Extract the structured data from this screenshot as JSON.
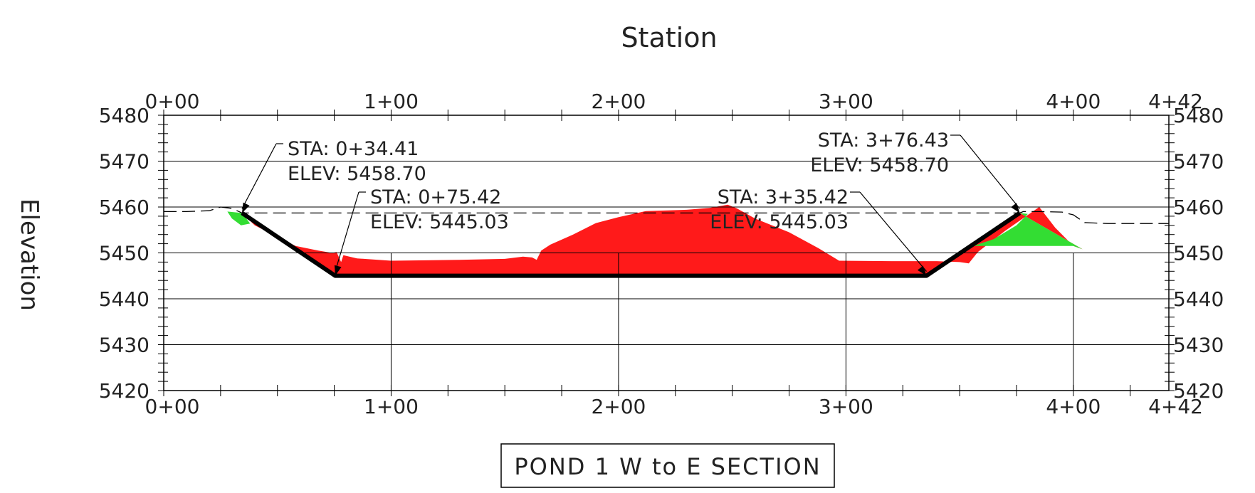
{
  "chart_data": {
    "type": "area",
    "title": "POND 1 W to E SECTION",
    "xlabel": "Station",
    "ylabel": "Elevation",
    "xlim": [
      0,
      442
    ],
    "ylim": [
      5420,
      5480
    ],
    "grid": true,
    "x_major_ticks": [
      {
        "value": 0,
        "label": "0+00"
      },
      {
        "value": 100,
        "label": "1+00"
      },
      {
        "value": 200,
        "label": "2+00"
      },
      {
        "value": 300,
        "label": "3+00"
      },
      {
        "value": 400,
        "label": "4+00"
      },
      {
        "value": 442,
        "label": "4+42"
      }
    ],
    "y_major_ticks": [
      {
        "value": 5420,
        "label": "5420"
      },
      {
        "value": 5430,
        "label": "5430"
      },
      {
        "value": 5440,
        "label": "5440"
      },
      {
        "value": 5450,
        "label": "5450"
      },
      {
        "value": 5460,
        "label": "5460"
      },
      {
        "value": 5470,
        "label": "5470"
      },
      {
        "value": 5480,
        "label": "5480"
      }
    ],
    "colors": {
      "cut": "#ff1a1a",
      "fill": "#33dd33",
      "design": "#000000",
      "existing": "#000000",
      "grid": "#000000"
    },
    "series": [
      {
        "style": "design",
        "points": [
          [
            34.41,
            5458.7
          ],
          [
            75.42,
            5445.03
          ],
          [
            335.42,
            5445.03
          ],
          [
            376.43,
            5458.7
          ]
        ]
      },
      {
        "style": "existing",
        "points": [
          [
            0,
            5459.0
          ],
          [
            10,
            5459.0
          ],
          [
            20,
            5459.2
          ],
          [
            25,
            5460.0
          ],
          [
            30,
            5459.7
          ],
          [
            34.41,
            5458.7
          ],
          [
            376.43,
            5458.7
          ],
          [
            378,
            5459.0
          ],
          [
            385,
            5459.0
          ],
          [
            395,
            5458.9
          ],
          [
            400,
            5458.3
          ],
          [
            405,
            5456.6
          ],
          [
            415,
            5456.4
          ],
          [
            442,
            5456.4
          ]
        ]
      },
      {
        "style": "cut",
        "points": [
          [
            34.41,
            5458.7
          ],
          [
            40,
            5456.0
          ],
          [
            50,
            5453.5
          ],
          [
            58,
            5451.5
          ],
          [
            68,
            5450.5
          ],
          [
            74,
            5450.0
          ],
          [
            76,
            5450.2
          ],
          [
            78,
            5448.0
          ],
          [
            79,
            5449.5
          ],
          [
            85,
            5448.8
          ],
          [
            100,
            5448.3
          ],
          [
            130,
            5448.5
          ],
          [
            150,
            5448.7
          ],
          [
            158,
            5449.2
          ],
          [
            162,
            5449.0
          ],
          [
            164,
            5448.5
          ],
          [
            166,
            5450.5
          ],
          [
            170,
            5451.8
          ],
          [
            180,
            5454.0
          ],
          [
            190,
            5456.5
          ],
          [
            200,
            5457.8
          ],
          [
            212,
            5459.1
          ],
          [
            230,
            5459.4
          ],
          [
            240,
            5459.8
          ],
          [
            248,
            5460.5
          ],
          [
            252,
            5459.7
          ],
          [
            260,
            5457.5
          ],
          [
            275,
            5454.5
          ],
          [
            288,
            5451.0
          ],
          [
            297,
            5448.3
          ],
          [
            320,
            5448.2
          ],
          [
            340,
            5448.2
          ],
          [
            350,
            5448.0
          ],
          [
            354,
            5447.7
          ],
          [
            358,
            5450.2
          ],
          [
            370,
            5454.8
          ],
          [
            385,
            5460.0
          ],
          [
            392,
            5455.5
          ],
          [
            400,
            5451.5
          ],
          [
            404,
            5450.8
          ],
          [
            376.43,
            5458.7
          ],
          [
            335.42,
            5445.03
          ],
          [
            75.42,
            5445.03
          ]
        ]
      },
      {
        "style": "fill",
        "polygons": [
          [
            [
              28,
              5459.0
            ],
            [
              34.41,
              5458.7
            ],
            [
              38,
              5456.4
            ],
            [
              34,
              5456.0
            ],
            [
              30,
              5457.5
            ]
          ],
          [
            [
              404,
              5450.8
            ],
            [
              376.43,
              5458.7
            ],
            [
              380,
              5458.5
            ],
            [
              375,
              5456.0
            ],
            [
              365,
              5453.0
            ],
            [
              356,
              5451.5
            ],
            [
              400,
              5451.5
            ]
          ]
        ]
      }
    ],
    "annotations": [
      {
        "line1": "STA: 0+34.41",
        "line2": "ELEV: 5458.70",
        "point": [
          34.41,
          5458.7
        ],
        "align": "start"
      },
      {
        "line1": "STA: 0+75.42",
        "line2": "ELEV: 5445.03",
        "point": [
          75.42,
          5445.03
        ],
        "align": "start"
      },
      {
        "line1": "STA: 3+35.42",
        "line2": "ELEV: 5445.03",
        "point": [
          335.42,
          5445.03
        ],
        "align": "end"
      },
      {
        "line1": "STA: 3+76.43",
        "line2": "ELEV: 5458.70",
        "point": [
          376.43,
          5458.7
        ],
        "align": "end"
      }
    ]
  }
}
